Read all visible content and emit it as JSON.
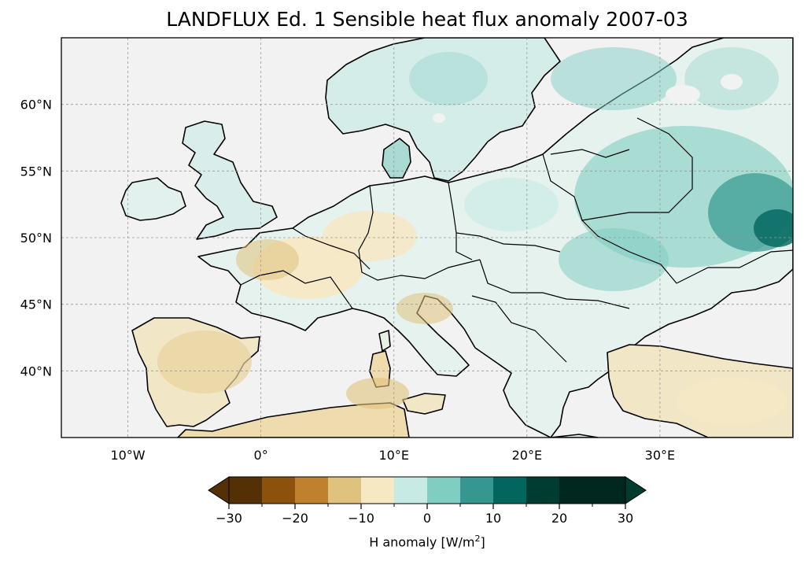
{
  "title": "LANDFLUX Ed. 1 Sensible heat flux anomaly 2007-03",
  "map": {
    "projection": "PlateCarree",
    "lon_range": [
      -15,
      40
    ],
    "lat_range": [
      35,
      65
    ],
    "ocean_color": "#f2f2f2",
    "coastline_color": "#000000",
    "gridlines": true,
    "lon_ticks": [
      {
        "value": -10,
        "label": "10°W"
      },
      {
        "value": 0,
        "label": "0°"
      },
      {
        "value": 10,
        "label": "10°E"
      },
      {
        "value": 20,
        "label": "20°E"
      },
      {
        "value": 30,
        "label": "30°E"
      }
    ],
    "lat_ticks": [
      {
        "value": 40,
        "label": "40°N"
      },
      {
        "value": 45,
        "label": "45°N"
      },
      {
        "value": 50,
        "label": "50°N"
      },
      {
        "value": 55,
        "label": "55°N"
      },
      {
        "value": 60,
        "label": "60°N"
      }
    ]
  },
  "colorbar": {
    "label_text": "H anomaly [W/m",
    "label_sup": "2",
    "label_end": "]",
    "levels": [
      -30,
      -25,
      -20,
      -15,
      -10,
      -5,
      0,
      5,
      10,
      15,
      20,
      25,
      30
    ],
    "colors": [
      "#543005",
      "#8c510a",
      "#bf812d",
      "#dfc27d",
      "#f6e8c3",
      "#f5f5f5",
      "#c7eae5",
      "#80cdc1",
      "#35978f",
      "#01665e",
      "#003c30",
      "#00281f"
    ],
    "under_color": "#543005",
    "over_color": "#003c30",
    "tick_values": [
      -30,
      -20,
      -10,
      0,
      10,
      20,
      30
    ],
    "tick_labels": [
      "−30",
      "−20",
      "−10",
      "0",
      "10",
      "20",
      "30"
    ]
  }
}
